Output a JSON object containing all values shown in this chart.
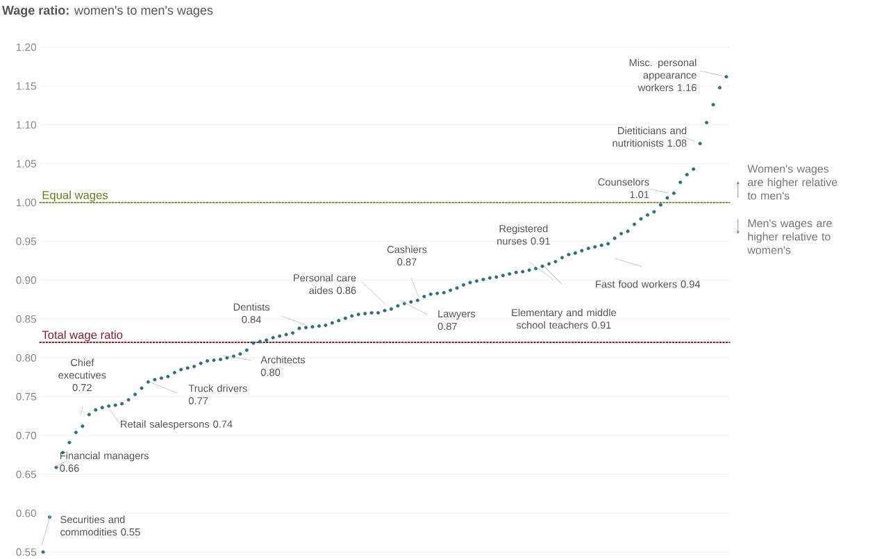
{
  "chart_data": {
    "type": "scatter",
    "title": "**Wage ratio:** women's to men's wages",
    "categories": [
      null,
      null,
      null,
      null,
      null,
      null,
      null,
      null,
      null,
      null,
      null,
      null,
      null,
      null,
      null,
      null,
      null,
      null,
      null,
      null,
      null,
      null,
      null,
      null,
      null,
      null,
      null,
      null,
      null,
      null,
      null,
      null,
      null,
      null,
      null,
      null,
      null,
      null,
      null,
      null,
      null,
      null,
      null,
      null,
      null,
      null,
      null,
      null,
      null,
      null,
      null,
      null,
      null,
      null,
      null,
      null,
      null,
      null,
      null,
      null,
      null,
      null,
      null,
      null,
      null,
      null,
      null,
      null,
      null,
      null,
      null,
      null,
      null,
      null,
      null,
      null,
      null,
      null,
      null,
      null,
      null,
      null,
      null,
      null,
      null,
      null,
      null,
      null,
      null,
      null,
      null,
      null,
      null,
      null,
      null,
      null,
      null,
      null,
      null,
      null,
      null,
      null,
      null,
      null,
      null
    ],
    "series": [
      {
        "color": "#2a6f7c",
        "values": [
          0.55,
          0.595,
          0.659,
          0.678,
          0.691,
          0.704,
          0.712,
          0.727,
          0.733,
          0.736,
          0.738,
          0.739,
          0.741,
          0.746,
          0.753,
          0.761,
          0.769,
          0.772,
          0.774,
          0.776,
          0.781,
          0.785,
          0.787,
          0.789,
          0.793,
          0.796,
          0.797,
          0.798,
          0.8,
          0.802,
          0.805,
          0.81,
          0.819,
          0.821,
          0.823,
          0.826,
          0.828,
          0.83,
          0.832,
          0.838,
          0.839,
          0.84,
          0.841,
          0.842,
          0.845,
          0.848,
          0.851,
          0.854,
          0.856,
          0.857,
          0.858,
          0.858,
          0.861,
          0.863,
          0.867,
          0.87,
          0.872,
          0.874,
          0.879,
          0.882,
          0.883,
          0.884,
          0.887,
          0.89,
          0.894,
          0.897,
          0.899,
          0.901,
          0.903,
          0.904,
          0.906,
          0.908,
          0.91,
          0.911,
          0.913,
          0.915,
          0.918,
          0.921,
          0.924,
          0.929,
          0.933,
          0.935,
          0.938,
          0.941,
          0.943,
          0.945,
          0.947,
          0.954,
          0.96,
          0.963,
          0.972,
          0.979,
          0.984,
          0.988,
          0.997,
          1.006,
          1.012,
          1.026,
          1.036,
          1.043,
          1.076,
          1.103,
          1.126,
          1.148,
          1.162
        ]
      }
    ],
    "ylim": [
      0.55,
      1.2
    ],
    "yticks": [
      0.55,
      {
        "value": 0.6,
        "label": "0.60"
      },
      0.65,
      {
        "value": 0.7,
        "label": "0.70"
      },
      0.75,
      {
        "value": 0.8,
        "label": "0.80"
      },
      0.85,
      {
        "value": 0.9,
        "label": "0.90"
      },
      0.95,
      {
        "value": 1.0,
        "label": "1.00"
      },
      1.05,
      {
        "value": 1.1,
        "label": "1.10"
      },
      1.15,
      {
        "value": 1.2,
        "label": "1.20"
      }
    ],
    "grid": "y",
    "tick_labels": "y",
    "marker": "circle",
    "ref_lines": [
      {
        "axis": "y",
        "value": 1.0,
        "label": "Equal wages",
        "color": "#6b7a1e",
        "line_style": "dotted"
      },
      {
        "axis": "y",
        "value": 0.82,
        "label": "Total wage ratio",
        "color": "#8b1a2b",
        "line_style": "dotted"
      }
    ],
    "annotations": [
      "Securities and commodities 0.55",
      "Financial managers 0.66",
      "Chief executives 0.72",
      "Retail salespersons 0.74",
      "Truck drivers 0.77",
      "Architects 0.80",
      "Dentists 0.84",
      "Personal care aides 0.86",
      "Cashiers 0.87",
      "Lawyers 0.87",
      "Registered nurses 0.91",
      "Elementary and middle school teachers 0.91",
      "Fast food workers 0.94",
      "Counselors 1.01",
      "Dietiticians and nutritionists 1.08",
      "Misc. personal appearance workers 1.16",
      "Women's wages are higher relative to men's",
      "Men's wages are higher relative to women's"
    ]
  }
}
